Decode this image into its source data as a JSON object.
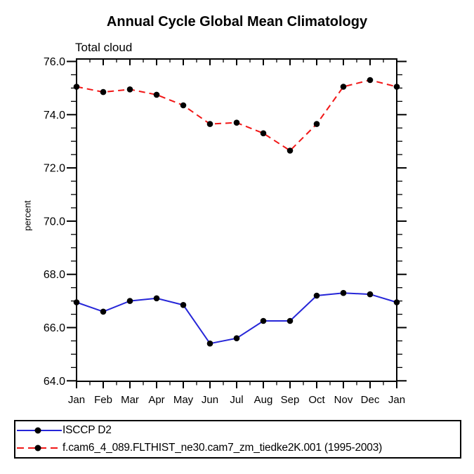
{
  "chart_data": {
    "type": "line",
    "title": "Annual Cycle Global Mean Climatology",
    "subtitle": "Total cloud",
    "ylabel": "percent",
    "xlabel": "",
    "categories": [
      "Jan",
      "Feb",
      "Mar",
      "Apr",
      "May",
      "Jun",
      "Jul",
      "Aug",
      "Sep",
      "Oct",
      "Nov",
      "Dec",
      "Jan"
    ],
    "series": [
      {
        "name": "ISCCP D2",
        "color": "#2626d8",
        "dash": "solid",
        "marker": "black-dot",
        "values": [
          66.95,
          66.6,
          67.0,
          67.1,
          66.85,
          65.4,
          65.6,
          66.25,
          66.25,
          67.2,
          67.3,
          67.25,
          66.95
        ]
      },
      {
        "name": "f.cam6_4_089.FLTHIST_ne30.cam7_zm_tiedke2K.001 (1995-2003)",
        "color": "#f11616",
        "dash": "dashed",
        "marker": "black-dot",
        "values": [
          75.05,
          74.85,
          74.95,
          74.75,
          74.35,
          73.65,
          73.7,
          73.3,
          72.65,
          73.65,
          75.05,
          75.3,
          75.05
        ]
      }
    ],
    "ylim": [
      64.0,
      76.1
    ],
    "yticks": [
      64.0,
      66.0,
      68.0,
      70.0,
      72.0,
      74.0,
      76.0
    ],
    "ytick_labels": [
      "64.0",
      "66.0",
      "68.0",
      "70.0",
      "72.0",
      "74.0",
      "76.0"
    ],
    "ytick_minor_step": 0.5,
    "xtick_minor": "half-month",
    "grid": false,
    "marker_color": "#000000",
    "frame_color": "#000000",
    "legend_position": "bottom-left-box"
  }
}
